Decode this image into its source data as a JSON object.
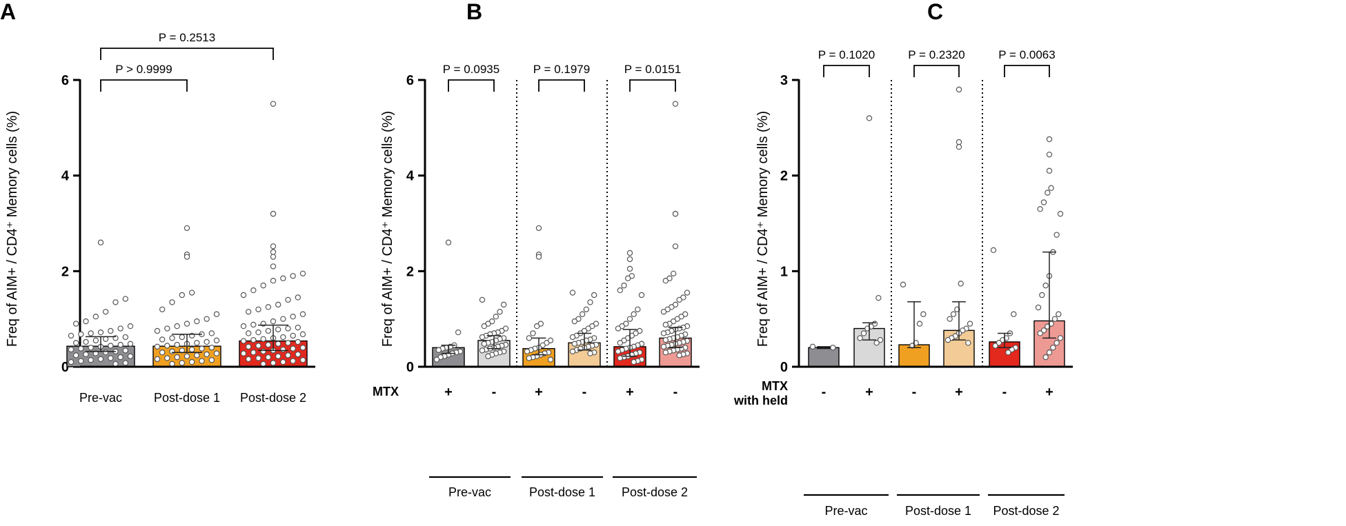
{
  "figure": {
    "panel_letters": [
      "A",
      "B",
      "C"
    ]
  },
  "colors": {
    "prevac": "#8e8e92",
    "prevac_light": "#d9d9d9",
    "post1": "#f0a020",
    "post1_light": "#f2cb96",
    "post2": "#e3281e",
    "post2_light": "#ee9a94",
    "axis": "#000000",
    "point_stroke": "#555555"
  },
  "chart_data": [
    {
      "type": "bar",
      "panel": "A",
      "ylabel": "Freq of AIM+ / CD4⁺ Memory cells (%)",
      "ylim": [
        0,
        6
      ],
      "yticks": [
        "0",
        "2",
        "4",
        "6"
      ],
      "categories": [
        "Pre-vac",
        "Post-dose 1",
        "Post-dose 2"
      ],
      "bars": [
        {
          "category": "Pre-vac",
          "value": 0.43,
          "err_low": 0.32,
          "err_high": 0.63,
          "color_key": "prevac",
          "points": [
            2.6,
            1.42,
            1.35,
            1.15,
            1.05,
            0.95,
            0.9,
            0.85,
            0.8,
            0.75,
            0.72,
            0.7,
            0.68,
            0.65,
            0.62,
            0.6,
            0.58,
            0.55,
            0.52,
            0.5,
            0.48,
            0.46,
            0.44,
            0.42,
            0.4,
            0.38,
            0.36,
            0.34,
            0.32,
            0.3,
            0.28,
            0.26,
            0.24,
            0.22,
            0.2,
            0.18,
            0.16,
            0.14,
            0.12,
            0.1,
            0.08,
            0.06
          ]
        },
        {
          "category": "Post-dose 1",
          "value": 0.43,
          "err_low": 0.3,
          "err_high": 0.68,
          "color_key": "post1",
          "points": [
            2.9,
            2.35,
            2.3,
            1.55,
            1.5,
            1.35,
            1.2,
            1.1,
            1.0,
            0.95,
            0.9,
            0.85,
            0.8,
            0.75,
            0.7,
            0.68,
            0.65,
            0.62,
            0.6,
            0.57,
            0.55,
            0.52,
            0.5,
            0.48,
            0.46,
            0.44,
            0.42,
            0.4,
            0.38,
            0.36,
            0.34,
            0.32,
            0.3,
            0.28,
            0.26,
            0.24,
            0.22,
            0.2,
            0.18,
            0.16,
            0.14,
            0.12,
            0.1,
            0.08,
            0.06
          ]
        },
        {
          "category": "Post-dose 2",
          "value": 0.54,
          "err_low": 0.34,
          "err_high": 0.87,
          "color_key": "post2",
          "points": [
            5.5,
            3.2,
            3.2,
            2.52,
            2.4,
            2.3,
            2.1,
            1.95,
            1.9,
            1.85,
            1.8,
            1.7,
            1.6,
            1.5,
            1.45,
            1.4,
            1.3,
            1.25,
            1.2,
            1.15,
            1.1,
            1.05,
            1.0,
            0.95,
            0.9,
            0.88,
            0.85,
            0.82,
            0.8,
            0.78,
            0.75,
            0.72,
            0.7,
            0.68,
            0.65,
            0.62,
            0.6,
            0.58,
            0.56,
            0.54,
            0.52,
            0.5,
            0.48,
            0.46,
            0.44,
            0.42,
            0.4,
            0.38,
            0.36,
            0.34,
            0.32,
            0.3,
            0.28,
            0.26,
            0.24,
            0.22,
            0.2,
            0.18,
            0.16,
            0.14,
            0.12,
            0.1,
            0.08,
            0.06
          ]
        }
      ],
      "comparisons": [
        {
          "from": 0,
          "to": 1,
          "label": "P > 0.9999",
          "level": 0
        },
        {
          "from": 0,
          "to": 2,
          "label": "P = 0.2513",
          "level": 1
        }
      ]
    },
    {
      "type": "bar",
      "panel": "B",
      "ylabel": "Freq of AIM+ / CD4⁺ Memory cells (%)",
      "ylim": [
        0,
        6
      ],
      "yticks": [
        "0",
        "2",
        "4",
        "6"
      ],
      "row_label": "MTX",
      "signs": [
        "+",
        "-",
        "+",
        "-",
        "+",
        "-"
      ],
      "groups": [
        "Pre-vac",
        "Post-dose 1",
        "Post-dose 2"
      ],
      "bars": [
        {
          "value": 0.4,
          "err_low": 0.28,
          "err_high": 0.45,
          "color_key": "prevac",
          "points": [
            2.6,
            0.72,
            0.45,
            0.42,
            0.4,
            0.38,
            0.35,
            0.32,
            0.3,
            0.28,
            0.25,
            0.22,
            0.2,
            0.15
          ]
        },
        {
          "value": 0.55,
          "err_low": 0.38,
          "err_high": 0.65,
          "color_key": "prevac_light",
          "points": [
            1.4,
            1.3,
            1.15,
            1.05,
            0.95,
            0.9,
            0.85,
            0.8,
            0.75,
            0.72,
            0.7,
            0.68,
            0.65,
            0.62,
            0.6,
            0.58,
            0.55,
            0.52,
            0.5,
            0.48,
            0.46,
            0.44,
            0.42,
            0.4,
            0.38,
            0.36,
            0.34,
            0.32,
            0.3,
            0.28,
            0.25,
            0.22
          ]
        },
        {
          "value": 0.38,
          "err_low": 0.25,
          "err_high": 0.6,
          "color_key": "post1",
          "points": [
            2.9,
            2.35,
            2.3,
            0.9,
            0.85,
            0.7,
            0.6,
            0.55,
            0.5,
            0.45,
            0.4,
            0.38,
            0.35,
            0.32,
            0.3,
            0.28,
            0.25,
            0.22,
            0.2,
            0.18,
            0.15
          ]
        },
        {
          "value": 0.5,
          "err_low": 0.35,
          "err_high": 0.7,
          "color_key": "post1_light",
          "points": [
            1.55,
            1.5,
            1.35,
            1.2,
            1.1,
            1.0,
            0.95,
            0.9,
            0.85,
            0.8,
            0.75,
            0.7,
            0.65,
            0.62,
            0.6,
            0.57,
            0.55,
            0.52,
            0.5,
            0.48,
            0.46,
            0.44,
            0.42,
            0.4,
            0.38,
            0.35,
            0.32,
            0.3,
            0.28
          ]
        },
        {
          "value": 0.42,
          "err_low": 0.22,
          "err_high": 0.78,
          "color_key": "post2",
          "points": [
            2.38,
            2.25,
            2.05,
            1.9,
            1.85,
            1.7,
            1.6,
            1.5,
            1.2,
            1.1,
            1.0,
            0.9,
            0.85,
            0.8,
            0.75,
            0.7,
            0.65,
            0.6,
            0.55,
            0.5,
            0.48,
            0.45,
            0.42,
            0.4,
            0.38,
            0.35,
            0.32,
            0.3,
            0.28,
            0.25,
            0.22,
            0.2,
            0.18,
            0.15,
            0.12,
            0.1
          ]
        },
        {
          "value": 0.6,
          "err_low": 0.4,
          "err_high": 0.82,
          "color_key": "post2_light",
          "points": [
            5.5,
            3.2,
            3.2,
            2.52,
            1.95,
            1.85,
            1.8,
            1.55,
            1.45,
            1.4,
            1.3,
            1.25,
            1.2,
            1.15,
            1.1,
            1.05,
            1.0,
            0.95,
            0.9,
            0.88,
            0.85,
            0.82,
            0.8,
            0.78,
            0.75,
            0.72,
            0.7,
            0.68,
            0.65,
            0.62,
            0.6,
            0.58,
            0.56,
            0.54,
            0.52,
            0.5,
            0.48,
            0.46,
            0.44,
            0.42,
            0.4,
            0.38,
            0.36,
            0.34,
            0.32,
            0.3,
            0.28,
            0.26,
            0.24
          ]
        }
      ],
      "comparisons": [
        {
          "from": 0,
          "to": 1,
          "label": "P = 0.0935"
        },
        {
          "from": 2,
          "to": 3,
          "label": "P = 0.1979"
        },
        {
          "from": 4,
          "to": 5,
          "label": "P = 0.0151"
        }
      ]
    },
    {
      "type": "bar",
      "panel": "C",
      "ylabel": "Freq of AIM+ / CD4⁺ Memory cells (%)",
      "ylim": [
        0,
        3
      ],
      "yticks": [
        "0",
        "1",
        "2",
        "3"
      ],
      "row_label": [
        "MTX",
        "with held"
      ],
      "signs": [
        "-",
        "+",
        "-",
        "+",
        "-",
        "+"
      ],
      "groups": [
        "Pre-vac",
        "Post-dose 1",
        "Post-dose 2"
      ],
      "bars": [
        {
          "value": 0.2,
          "err_low": 0.19,
          "err_high": 0.21,
          "color_key": "prevac",
          "points": [
            0.21,
            0.2
          ]
        },
        {
          "value": 0.4,
          "err_low": 0.28,
          "err_high": 0.46,
          "color_key": "prevac_light",
          "points": [
            2.6,
            0.72,
            0.45,
            0.42,
            0.4,
            0.35,
            0.3,
            0.28,
            0.25
          ]
        },
        {
          "value": 0.23,
          "err_low": 0.2,
          "err_high": 0.68,
          "color_key": "post1",
          "points": [
            0.86,
            0.55,
            0.45,
            0.25,
            0.22
          ]
        },
        {
          "value": 0.38,
          "err_low": 0.28,
          "err_high": 0.68,
          "color_key": "post1_light",
          "points": [
            2.9,
            2.35,
            2.3,
            0.87,
            0.6,
            0.55,
            0.5,
            0.45,
            0.4,
            0.38,
            0.35,
            0.32,
            0.3,
            0.28,
            0.25
          ]
        },
        {
          "value": 0.26,
          "err_low": 0.2,
          "err_high": 0.35,
          "color_key": "post2",
          "points": [
            1.22,
            0.55,
            0.35,
            0.3,
            0.28,
            0.25,
            0.22,
            0.2,
            0.18,
            0.15
          ]
        },
        {
          "value": 0.48,
          "err_low": 0.3,
          "err_high": 1.2,
          "color_key": "post2_light",
          "points": [
            2.38,
            2.22,
            2.05,
            1.87,
            1.82,
            1.72,
            1.65,
            1.6,
            1.38,
            1.2,
            0.95,
            0.85,
            0.75,
            0.62,
            0.55,
            0.5,
            0.45,
            0.42,
            0.38,
            0.35,
            0.3,
            0.25,
            0.2,
            0.15,
            0.1
          ]
        }
      ],
      "comparisons": [
        {
          "from": 0,
          "to": 1,
          "label": "P = 0.1020"
        },
        {
          "from": 2,
          "to": 3,
          "label": "P = 0.2320"
        },
        {
          "from": 4,
          "to": 5,
          "label": "P = 0.0063"
        }
      ]
    }
  ]
}
